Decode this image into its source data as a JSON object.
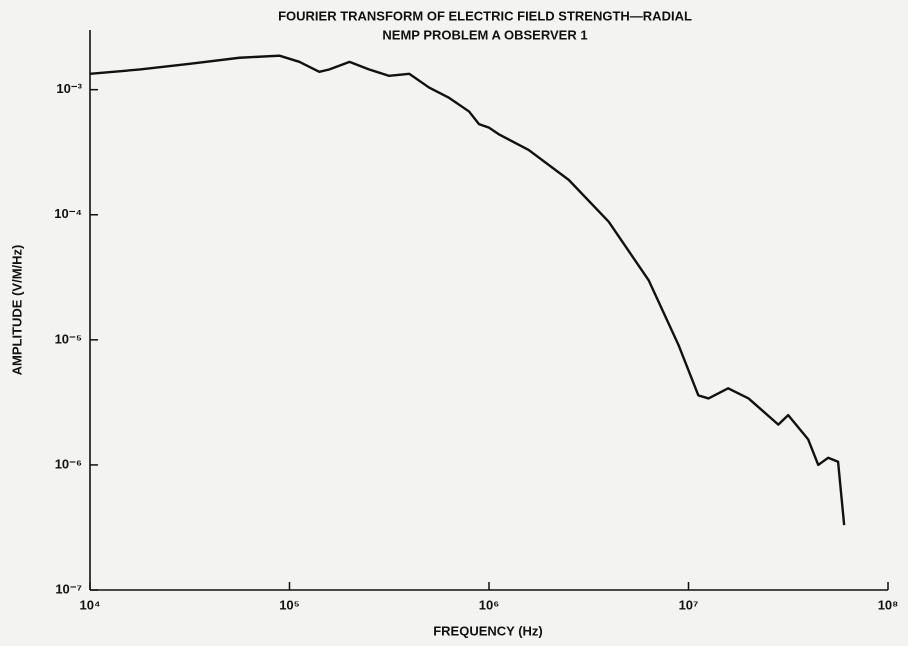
{
  "chart_data": {
    "type": "line",
    "title": "FOURIER TRANSFORM OF ELECTRIC FIELD STRENGTH—RADIAL",
    "subtitle": "NEMP PROBLEM A OBSERVER 1",
    "xlabel": "FREQUENCY (Hz)",
    "ylabel": "AMPLITUDE (V/M/Hz)",
    "xscale": "log",
    "yscale": "log",
    "xlim": [
      10000,
      100000000
    ],
    "ylim": [
      1e-07,
      0.003
    ],
    "xticks": [
      {
        "value": 10000,
        "label": "10⁴"
      },
      {
        "value": 100000,
        "label": "10⁵"
      },
      {
        "value": 1000000,
        "label": "10⁶"
      },
      {
        "value": 10000000,
        "label": "10⁷"
      },
      {
        "value": 100000000,
        "label": "10⁸"
      }
    ],
    "yticks": [
      {
        "value": 1e-07,
        "label": "10⁻⁷"
      },
      {
        "value": 1e-06,
        "label": "10⁻⁶"
      },
      {
        "value": 1e-05,
        "label": "10⁻⁵"
      },
      {
        "value": 0.0001,
        "label": "10⁻⁴"
      },
      {
        "value": 0.001,
        "label": "10⁻³"
      }
    ],
    "grid": false,
    "x": [
      10000,
      17800,
      31600,
      56200,
      89100,
      112000,
      141000,
      158000,
      200000,
      251000,
      316000,
      398000,
      501000,
      631000,
      794000,
      891000,
      1000000,
      1120000,
      1580000,
      2510000,
      3980000,
      6310000,
      8910000,
      11200000,
      12600000,
      15800000,
      20000000,
      28200000,
      31600000,
      39800000,
      44700000,
      50100000,
      56200000,
      60300000
    ],
    "series": [
      {
        "color": "#111111",
        "values": [
          0.00134,
          0.00145,
          0.00161,
          0.0018,
          0.00187,
          0.00167,
          0.00139,
          0.00145,
          0.00167,
          0.00145,
          0.00129,
          0.00134,
          0.00104,
          0.00086,
          0.00067,
          0.00053,
          0.000497,
          0.00044,
          0.00033,
          0.00019,
          8.8e-05,
          3e-05,
          9.1e-06,
          3.6e-06,
          3.4e-06,
          4.1e-06,
          3.4e-06,
          2.1e-06,
          2.5e-06,
          1.6e-06,
          1e-06,
          1.14e-06,
          1.06e-06,
          3.3e-07
        ]
      }
    ]
  }
}
